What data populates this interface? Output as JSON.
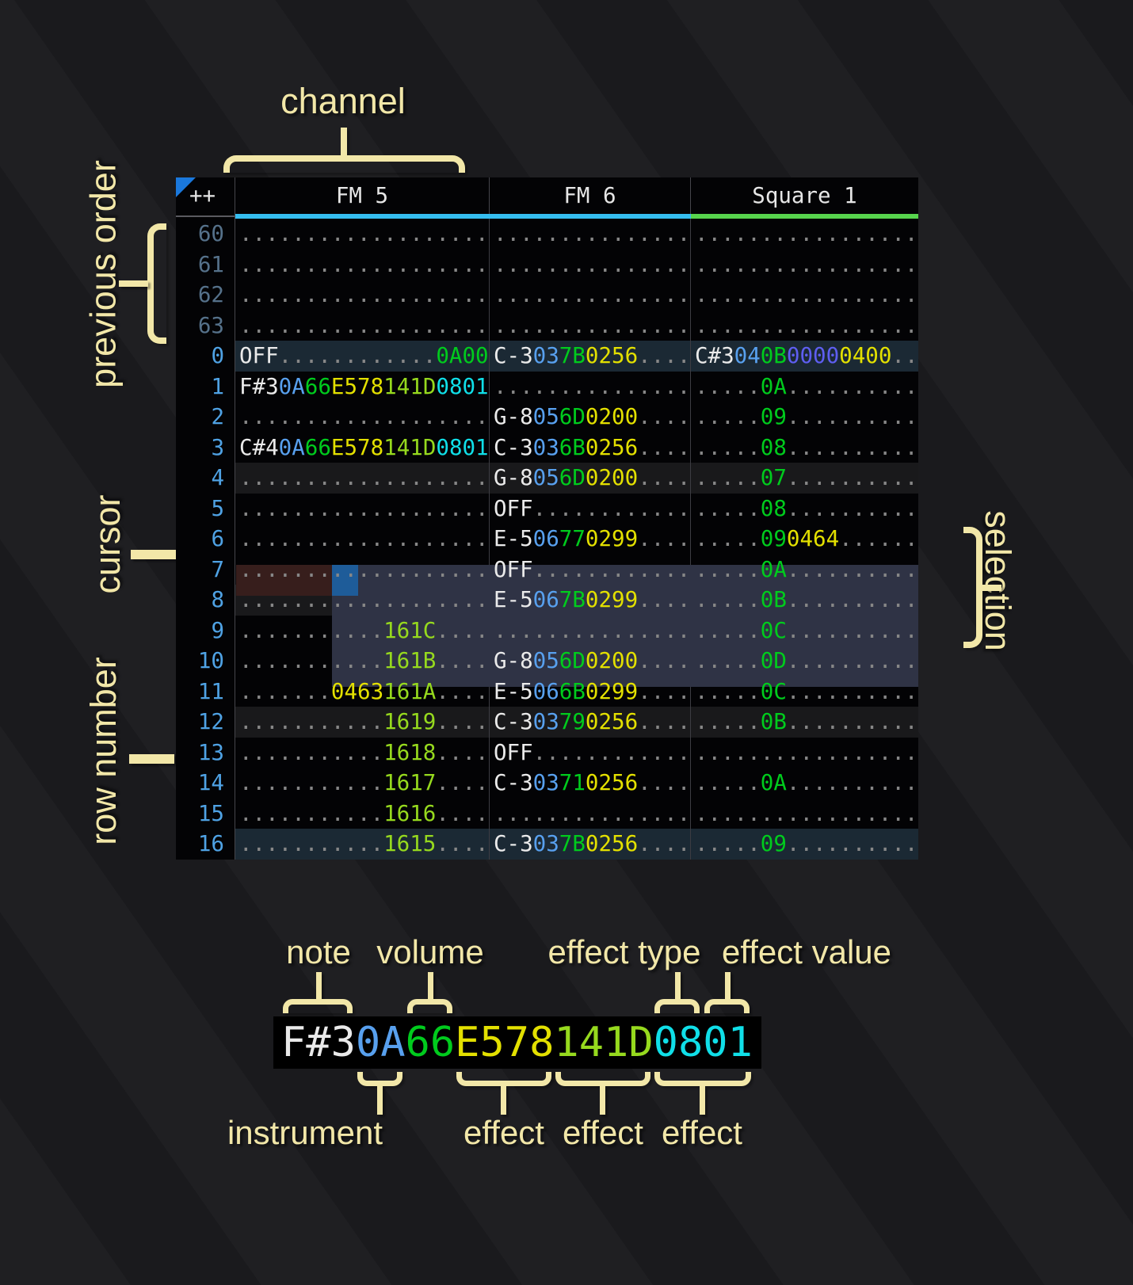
{
  "colors": {
    "note": "#eaeaea",
    "instrument": "#58a0ee",
    "volume": "#00cb1d",
    "effect_yellow": "#e3e000",
    "effect_lime": "#96d91e",
    "effect_cyan": "#10dfe8",
    "effect_violet": "#5e5ef0",
    "dots": "#878787",
    "row_number": "#4fa2e4",
    "row_number_dim": "#55718a",
    "channel_bar_fm": "#35bef0",
    "channel_bar_square": "#57d54d",
    "cursor": "#1e5c99",
    "cursor_row": "#371e1c",
    "selection": "#2f3345",
    "row_highlight_major": "#1b2934",
    "row_highlight_minor": "#19191b",
    "annotation": "#f2e7a8",
    "header_text": "#e6e6e6",
    "corner_triangle": "#1a78dc"
  },
  "annotations": {
    "channel": "channel",
    "previous_order": "previous order",
    "cursor": "cursor",
    "row_number": "row number",
    "selection": "selection",
    "note": "note",
    "volume": "volume",
    "effect_type": "effect type",
    "effect_value": "effect value",
    "instrument": "instrument",
    "effect_1": "effect",
    "effect_2": "effect",
    "effect_3": "effect"
  },
  "tracker": {
    "corner": "++",
    "channels": [
      {
        "key": "fm5",
        "name": "FM 5",
        "bar_color": "channel_bar_fm"
      },
      {
        "key": "fm6",
        "name": "FM 6",
        "bar_color": "channel_bar_fm"
      },
      {
        "key": "s1",
        "name": "Square 1",
        "bar_color": "channel_bar_square"
      }
    ],
    "rows": [
      {
        "num": "60",
        "dim": true,
        "hl": null,
        "cells": [
          [
            [
              "...................",
              "d"
            ]
          ],
          [
            [
              "...............",
              "d"
            ]
          ],
          [
            [
              ".................",
              "d"
            ]
          ]
        ]
      },
      {
        "num": "61",
        "dim": true,
        "hl": null,
        "cells": [
          [
            [
              "...................",
              "d"
            ]
          ],
          [
            [
              "...............",
              "d"
            ]
          ],
          [
            [
              ".................",
              "d"
            ]
          ]
        ]
      },
      {
        "num": "62",
        "dim": true,
        "hl": null,
        "cells": [
          [
            [
              "...................",
              "d"
            ]
          ],
          [
            [
              "...............",
              "d"
            ]
          ],
          [
            [
              ".................",
              "d"
            ]
          ]
        ]
      },
      {
        "num": "63",
        "dim": true,
        "hl": null,
        "cells": [
          [
            [
              "...................",
              "d"
            ]
          ],
          [
            [
              "...............",
              "d"
            ]
          ],
          [
            [
              ".................",
              "d"
            ]
          ]
        ]
      },
      {
        "num": "0",
        "dim": false,
        "hl": "major",
        "cells": [
          [
            [
              "OFF",
              "n"
            ],
            [
              "............",
              "d"
            ],
            [
              "0A00",
              "v"
            ]
          ],
          [
            [
              "C-3",
              "n"
            ],
            [
              "03",
              "i"
            ],
            [
              "7B",
              "v"
            ],
            [
              "0256",
              "y"
            ],
            [
              "....",
              "d"
            ]
          ],
          [
            [
              "C#3",
              "n"
            ],
            [
              "04",
              "i"
            ],
            [
              "0B",
              "v"
            ],
            [
              "0000",
              "p"
            ],
            [
              "0400",
              "y"
            ],
            [
              "..",
              "d"
            ]
          ]
        ]
      },
      {
        "num": "1",
        "dim": false,
        "hl": null,
        "cells": [
          [
            [
              "F#3",
              "n"
            ],
            [
              "0A",
              "i"
            ],
            [
              "66",
              "v"
            ],
            [
              "E578",
              "y"
            ],
            [
              "141D",
              "l"
            ],
            [
              "0801",
              "c"
            ]
          ],
          [
            [
              "...............",
              "d"
            ]
          ],
          [
            [
              ".....",
              "d"
            ],
            [
              "0A",
              "v"
            ],
            [
              "..........",
              "d"
            ]
          ]
        ]
      },
      {
        "num": "2",
        "dim": false,
        "hl": null,
        "cells": [
          [
            [
              "...................",
              "d"
            ]
          ],
          [
            [
              "G-8",
              "n"
            ],
            [
              "05",
              "i"
            ],
            [
              "6D",
              "v"
            ],
            [
              "0200",
              "y"
            ],
            [
              "....",
              "d"
            ]
          ],
          [
            [
              ".....",
              "d"
            ],
            [
              "09",
              "v"
            ],
            [
              "..........",
              "d"
            ]
          ]
        ]
      },
      {
        "num": "3",
        "dim": false,
        "hl": null,
        "cells": [
          [
            [
              "C#4",
              "n"
            ],
            [
              "0A",
              "i"
            ],
            [
              "66",
              "v"
            ],
            [
              "E578",
              "y"
            ],
            [
              "141D",
              "l"
            ],
            [
              "0801",
              "c"
            ]
          ],
          [
            [
              "C-3",
              "n"
            ],
            [
              "03",
              "i"
            ],
            [
              "6B",
              "v"
            ],
            [
              "0256",
              "y"
            ],
            [
              "....",
              "d"
            ]
          ],
          [
            [
              ".....",
              "d"
            ],
            [
              "08",
              "v"
            ],
            [
              "..........",
              "d"
            ]
          ]
        ]
      },
      {
        "num": "4",
        "dim": false,
        "hl": "minor",
        "cells": [
          [
            [
              "...................",
              "d"
            ]
          ],
          [
            [
              "G-8",
              "n"
            ],
            [
              "05",
              "i"
            ],
            [
              "6D",
              "v"
            ],
            [
              "0200",
              "y"
            ],
            [
              "....",
              "d"
            ]
          ],
          [
            [
              ".....",
              "d"
            ],
            [
              "07",
              "v"
            ],
            [
              "..........",
              "d"
            ]
          ]
        ]
      },
      {
        "num": "5",
        "dim": false,
        "hl": null,
        "cells": [
          [
            [
              "...................",
              "d"
            ]
          ],
          [
            [
              "OFF",
              "n"
            ],
            [
              "............",
              "d"
            ]
          ],
          [
            [
              ".....",
              "d"
            ],
            [
              "08",
              "v"
            ],
            [
              "..........",
              "d"
            ]
          ]
        ]
      },
      {
        "num": "6",
        "dim": false,
        "hl": null,
        "cells": [
          [
            [
              "...................",
              "d"
            ]
          ],
          [
            [
              "E-5",
              "n"
            ],
            [
              "06",
              "i"
            ],
            [
              "77",
              "v"
            ],
            [
              "0299",
              "y"
            ],
            [
              "....",
              "d"
            ]
          ],
          [
            [
              ".....",
              "d"
            ],
            [
              "09",
              "v"
            ],
            [
              "0464",
              "y"
            ],
            [
              "......",
              "d"
            ]
          ]
        ]
      },
      {
        "num": "7",
        "dim": false,
        "hl": null,
        "cells": [
          [
            [
              "...................",
              "d"
            ]
          ],
          [
            [
              "OFF",
              "n"
            ],
            [
              "............",
              "d"
            ]
          ],
          [
            [
              ".....",
              "d"
            ],
            [
              "0A",
              "v"
            ],
            [
              "..........",
              "d"
            ]
          ]
        ]
      },
      {
        "num": "8",
        "dim": false,
        "hl": "minor",
        "cells": [
          [
            [
              "...................",
              "d"
            ]
          ],
          [
            [
              "E-5",
              "n"
            ],
            [
              "06",
              "i"
            ],
            [
              "7B",
              "v"
            ],
            [
              "0299",
              "y"
            ],
            [
              "....",
              "d"
            ]
          ],
          [
            [
              ".....",
              "d"
            ],
            [
              "0B",
              "v"
            ],
            [
              "..........",
              "d"
            ]
          ]
        ]
      },
      {
        "num": "9",
        "dim": false,
        "hl": null,
        "cells": [
          [
            [
              "...........",
              "d"
            ],
            [
              "161C",
              "l"
            ],
            [
              "....",
              "d"
            ]
          ],
          [
            [
              "...............",
              "d"
            ]
          ],
          [
            [
              ".....",
              "d"
            ],
            [
              "0C",
              "v"
            ],
            [
              "..........",
              "d"
            ]
          ]
        ]
      },
      {
        "num": "10",
        "dim": false,
        "hl": null,
        "cells": [
          [
            [
              "...........",
              "d"
            ],
            [
              "161B",
              "l"
            ],
            [
              "....",
              "d"
            ]
          ],
          [
            [
              "G-8",
              "n"
            ],
            [
              "05",
              "i"
            ],
            [
              "6D",
              "v"
            ],
            [
              "0200",
              "y"
            ],
            [
              "....",
              "d"
            ]
          ],
          [
            [
              ".....",
              "d"
            ],
            [
              "0D",
              "v"
            ],
            [
              "..........",
              "d"
            ]
          ]
        ]
      },
      {
        "num": "11",
        "dim": false,
        "hl": null,
        "cells": [
          [
            [
              ".......",
              "d"
            ],
            [
              "0463",
              "y"
            ],
            [
              "161A",
              "l"
            ],
            [
              "....",
              "d"
            ]
          ],
          [
            [
              "E-5",
              "n"
            ],
            [
              "06",
              "i"
            ],
            [
              "6B",
              "v"
            ],
            [
              "0299",
              "y"
            ],
            [
              "....",
              "d"
            ]
          ],
          [
            [
              ".....",
              "d"
            ],
            [
              "0C",
              "v"
            ],
            [
              "..........",
              "d"
            ]
          ]
        ]
      },
      {
        "num": "12",
        "dim": false,
        "hl": "minor",
        "cells": [
          [
            [
              "...........",
              "d"
            ],
            [
              "1619",
              "l"
            ],
            [
              "....",
              "d"
            ]
          ],
          [
            [
              "C-3",
              "n"
            ],
            [
              "03",
              "i"
            ],
            [
              "79",
              "v"
            ],
            [
              "0256",
              "y"
            ],
            [
              "....",
              "d"
            ]
          ],
          [
            [
              ".....",
              "d"
            ],
            [
              "0B",
              "v"
            ],
            [
              "..........",
              "d"
            ]
          ]
        ]
      },
      {
        "num": "13",
        "dim": false,
        "hl": null,
        "cells": [
          [
            [
              "...........",
              "d"
            ],
            [
              "1618",
              "l"
            ],
            [
              "....",
              "d"
            ]
          ],
          [
            [
              "OFF",
              "n"
            ],
            [
              "............",
              "d"
            ]
          ],
          [
            [
              ".................",
              "d"
            ]
          ]
        ]
      },
      {
        "num": "14",
        "dim": false,
        "hl": null,
        "cells": [
          [
            [
              "...........",
              "d"
            ],
            [
              "1617",
              "l"
            ],
            [
              "....",
              "d"
            ]
          ],
          [
            [
              "C-3",
              "n"
            ],
            [
              "03",
              "i"
            ],
            [
              "71",
              "v"
            ],
            [
              "0256",
              "y"
            ],
            [
              "....",
              "d"
            ]
          ],
          [
            [
              ".....",
              "d"
            ],
            [
              "0A",
              "v"
            ],
            [
              "..........",
              "d"
            ]
          ]
        ]
      },
      {
        "num": "15",
        "dim": false,
        "hl": null,
        "cells": [
          [
            [
              "...........",
              "d"
            ],
            [
              "1616",
              "l"
            ],
            [
              "....",
              "d"
            ]
          ],
          [
            [
              "...............",
              "d"
            ]
          ],
          [
            [
              ".................",
              "d"
            ]
          ]
        ]
      },
      {
        "num": "16",
        "dim": false,
        "hl": "major",
        "cells": [
          [
            [
              "...........",
              "d"
            ],
            [
              "1615",
              "l"
            ],
            [
              "....",
              "d"
            ]
          ],
          [
            [
              "C-3",
              "n"
            ],
            [
              "03",
              "i"
            ],
            [
              "7B",
              "v"
            ],
            [
              "0256",
              "y"
            ],
            [
              "....",
              "d"
            ]
          ],
          [
            [
              ".....",
              "d"
            ],
            [
              "09",
              "v"
            ],
            [
              "..........",
              "d"
            ]
          ]
        ]
      }
    ]
  },
  "detail": {
    "segments": [
      {
        "text": "F#3",
        "c": "n",
        "name": "note"
      },
      {
        "text": "0A",
        "c": "i",
        "name": "instrument"
      },
      {
        "text": "66",
        "c": "v",
        "name": "volume"
      },
      {
        "text": "E578",
        "c": "y",
        "name": "effect-1"
      },
      {
        "text": "141D",
        "c": "l",
        "name": "effect-2"
      },
      {
        "text": "08",
        "c": "c",
        "name": "effect-3-type"
      },
      {
        "text": "01",
        "c": "c",
        "name": "effect-3-value"
      }
    ]
  }
}
